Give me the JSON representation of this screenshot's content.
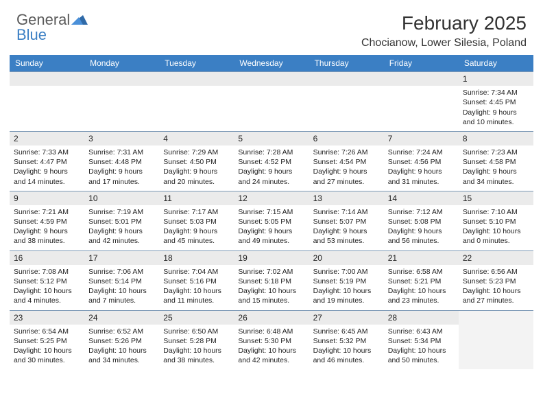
{
  "logo": {
    "word1": "General",
    "word2": "Blue"
  },
  "title": "February 2025",
  "location": "Chocianow, Lower Silesia, Poland",
  "colors": {
    "header_bg": "#3b7fc4",
    "header_text": "#ffffff",
    "daynum_bg": "#ebebeb",
    "border": "#7a97b5",
    "logo_gray": "#5a5a5a",
    "logo_blue": "#3b7fc4"
  },
  "weekdays": [
    "Sunday",
    "Monday",
    "Tuesday",
    "Wednesday",
    "Thursday",
    "Friday",
    "Saturday"
  ],
  "weeks": [
    [
      null,
      null,
      null,
      null,
      null,
      null,
      {
        "n": "1",
        "sr": "7:34 AM",
        "ss": "4:45 PM",
        "dl": "9 hours and 10 minutes."
      }
    ],
    [
      {
        "n": "2",
        "sr": "7:33 AM",
        "ss": "4:47 PM",
        "dl": "9 hours and 14 minutes."
      },
      {
        "n": "3",
        "sr": "7:31 AM",
        "ss": "4:48 PM",
        "dl": "9 hours and 17 minutes."
      },
      {
        "n": "4",
        "sr": "7:29 AM",
        "ss": "4:50 PM",
        "dl": "9 hours and 20 minutes."
      },
      {
        "n": "5",
        "sr": "7:28 AM",
        "ss": "4:52 PM",
        "dl": "9 hours and 24 minutes."
      },
      {
        "n": "6",
        "sr": "7:26 AM",
        "ss": "4:54 PM",
        "dl": "9 hours and 27 minutes."
      },
      {
        "n": "7",
        "sr": "7:24 AM",
        "ss": "4:56 PM",
        "dl": "9 hours and 31 minutes."
      },
      {
        "n": "8",
        "sr": "7:23 AM",
        "ss": "4:58 PM",
        "dl": "9 hours and 34 minutes."
      }
    ],
    [
      {
        "n": "9",
        "sr": "7:21 AM",
        "ss": "4:59 PM",
        "dl": "9 hours and 38 minutes."
      },
      {
        "n": "10",
        "sr": "7:19 AM",
        "ss": "5:01 PM",
        "dl": "9 hours and 42 minutes."
      },
      {
        "n": "11",
        "sr": "7:17 AM",
        "ss": "5:03 PM",
        "dl": "9 hours and 45 minutes."
      },
      {
        "n": "12",
        "sr": "7:15 AM",
        "ss": "5:05 PM",
        "dl": "9 hours and 49 minutes."
      },
      {
        "n": "13",
        "sr": "7:14 AM",
        "ss": "5:07 PM",
        "dl": "9 hours and 53 minutes."
      },
      {
        "n": "14",
        "sr": "7:12 AM",
        "ss": "5:08 PM",
        "dl": "9 hours and 56 minutes."
      },
      {
        "n": "15",
        "sr": "7:10 AM",
        "ss": "5:10 PM",
        "dl": "10 hours and 0 minutes."
      }
    ],
    [
      {
        "n": "16",
        "sr": "7:08 AM",
        "ss": "5:12 PM",
        "dl": "10 hours and 4 minutes."
      },
      {
        "n": "17",
        "sr": "7:06 AM",
        "ss": "5:14 PM",
        "dl": "10 hours and 7 minutes."
      },
      {
        "n": "18",
        "sr": "7:04 AM",
        "ss": "5:16 PM",
        "dl": "10 hours and 11 minutes."
      },
      {
        "n": "19",
        "sr": "7:02 AM",
        "ss": "5:18 PM",
        "dl": "10 hours and 15 minutes."
      },
      {
        "n": "20",
        "sr": "7:00 AM",
        "ss": "5:19 PM",
        "dl": "10 hours and 19 minutes."
      },
      {
        "n": "21",
        "sr": "6:58 AM",
        "ss": "5:21 PM",
        "dl": "10 hours and 23 minutes."
      },
      {
        "n": "22",
        "sr": "6:56 AM",
        "ss": "5:23 PM",
        "dl": "10 hours and 27 minutes."
      }
    ],
    [
      {
        "n": "23",
        "sr": "6:54 AM",
        "ss": "5:25 PM",
        "dl": "10 hours and 30 minutes."
      },
      {
        "n": "24",
        "sr": "6:52 AM",
        "ss": "5:26 PM",
        "dl": "10 hours and 34 minutes."
      },
      {
        "n": "25",
        "sr": "6:50 AM",
        "ss": "5:28 PM",
        "dl": "10 hours and 38 minutes."
      },
      {
        "n": "26",
        "sr": "6:48 AM",
        "ss": "5:30 PM",
        "dl": "10 hours and 42 minutes."
      },
      {
        "n": "27",
        "sr": "6:45 AM",
        "ss": "5:32 PM",
        "dl": "10 hours and 46 minutes."
      },
      {
        "n": "28",
        "sr": "6:43 AM",
        "ss": "5:34 PM",
        "dl": "10 hours and 50 minutes."
      },
      null
    ]
  ],
  "labels": {
    "sunrise": "Sunrise:",
    "sunset": "Sunset:",
    "daylight": "Daylight:"
  }
}
